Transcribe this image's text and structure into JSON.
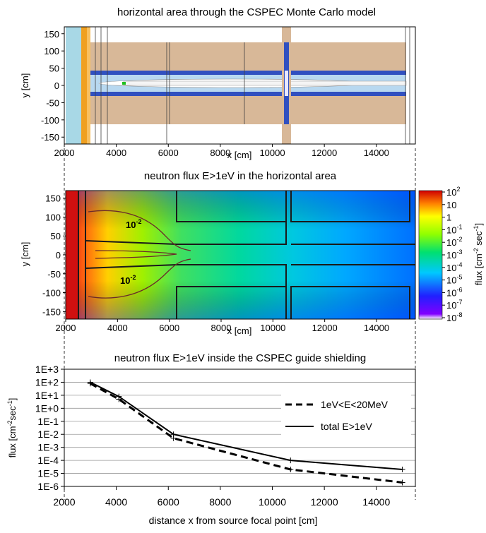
{
  "chart_data": [
    {
      "type": "diagram",
      "title": "horizontal area through the CSPEC Monte Carlo model",
      "xlabel": "x [cm]",
      "ylabel": "y [cm]",
      "x_ticks": [
        2000,
        4000,
        6000,
        8000,
        10000,
        12000,
        14000
      ],
      "y_ticks": [
        150,
        100,
        50,
        0,
        -50,
        -100,
        -150
      ],
      "xlim": [
        2000,
        15500
      ],
      "ylim": [
        -170,
        170
      ]
    },
    {
      "type": "heatmap",
      "title": "neutron flux E>1eV in the horizontal area",
      "xlabel": "x [cm]",
      "ylabel": "y [cm]",
      "x_ticks": [
        2000,
        4000,
        6000,
        8000,
        10000,
        12000,
        14000
      ],
      "y_ticks": [
        150,
        100,
        50,
        0,
        -50,
        -100,
        -150
      ],
      "xlim": [
        2000,
        15500
      ],
      "ylim": [
        -170,
        170
      ],
      "contour_labels": [
        "10",
        "10"
      ],
      "contour_label_exp": "-2",
      "colorbar": {
        "label": "flux [cm",
        "label_exp1": "-2",
        "label_mid": " sec",
        "label_exp2": "-1",
        "label_end": "]",
        "ticks": [
          {
            "base": "10",
            "exp": "2"
          },
          {
            "base": "10",
            "exp": ""
          },
          {
            "base": "1",
            "exp": ""
          },
          {
            "base": "10",
            "exp": "-1"
          },
          {
            "base": "10",
            "exp": "-2"
          },
          {
            "base": "10",
            "exp": "-3"
          },
          {
            "base": "10",
            "exp": "-4"
          },
          {
            "base": "10",
            "exp": "-5"
          },
          {
            "base": "10",
            "exp": "-6"
          },
          {
            "base": "10",
            "exp": "-7"
          },
          {
            "base": "10",
            "exp": "-8"
          }
        ]
      }
    },
    {
      "type": "line",
      "title": "neutron flux E>1eV inside the CSPEC guide shielding",
      "xlabel": "distance x from source focal point [cm]",
      "ylabel": "flux [cm",
      "ylabel_exp1": "-2",
      "ylabel_mid": "sec",
      "ylabel_exp2": "-1",
      "ylabel_end": "]",
      "xlim": [
        2000,
        15500
      ],
      "ylim_log10": [
        -6,
        3
      ],
      "x_ticks": [
        2000,
        4000,
        6000,
        8000,
        10000,
        12000,
        14000
      ],
      "y_tick_labels": [
        "1E+3",
        "1E+2",
        "1E+1",
        "1E+0",
        "1E-1",
        "1E-2",
        "1E-3",
        "1E-4",
        "1E-5",
        "1E-6"
      ],
      "y_tick_exps": [
        3,
        2,
        1,
        0,
        -1,
        -2,
        -3,
        -4,
        -5,
        -6
      ],
      "series": [
        {
          "name": "1eV<E<20MeV",
          "style": "dashed",
          "x": [
            3000,
            4100,
            6200,
            10700,
            15000
          ],
          "y": [
            80,
            5,
            0.005,
            2e-05,
            2e-06
          ]
        },
        {
          "name": "total E>1eV",
          "style": "solid",
          "x": [
            3000,
            4100,
            6200,
            10700,
            15000
          ],
          "y": [
            100,
            8,
            0.01,
            0.0001,
            2e-05
          ]
        }
      ]
    }
  ]
}
